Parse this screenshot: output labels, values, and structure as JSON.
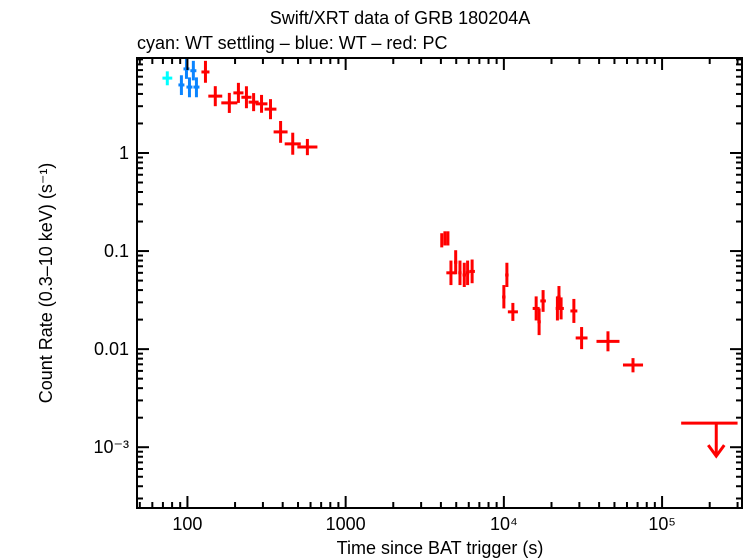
{
  "chart_data": {
    "type": "scatter",
    "title": "Swift/XRT data of GRB 180204A",
    "subtitle": "cyan: WT settling – blue: WT – red: PC",
    "xlabel": "Time since BAT trigger (s)",
    "ylabel": "Count Rate (0.3–10 keV) (s⁻¹)",
    "xscale": "log",
    "yscale": "log",
    "xlim": [
      48,
      320000
    ],
    "ylim": [
      0.00024,
      9.3
    ],
    "x_ticks": [
      {
        "v": 100,
        "label": "100"
      },
      {
        "v": 1000,
        "label": "1000"
      },
      {
        "v": 10000,
        "label": "10⁴"
      },
      {
        "v": 100000,
        "label": "10⁵"
      }
    ],
    "y_ticks": [
      {
        "v": 1,
        "label": "1"
      },
      {
        "v": 0.1,
        "label": "0.1"
      },
      {
        "v": 0.01,
        "label": "0.01"
      },
      {
        "v": 0.001,
        "label": "10⁻³"
      }
    ],
    "grid": false,
    "series": [
      {
        "color": "#00ffff",
        "points": [
          {
            "x": 74.6,
            "xlo": 69.5,
            "xhi": 80.2,
            "y": 5.8,
            "ylo": 4.9,
            "yhi": 6.8
          }
        ]
      },
      {
        "color": "#0a84ff",
        "points": [
          {
            "x": 91.6,
            "xlo": 87.7,
            "xhi": 95.7,
            "y": 4.94,
            "ylo": 3.9,
            "yhi": 6.2
          },
          {
            "x": 98.6,
            "xlo": 94.4,
            "xhi": 103,
            "y": 7.2,
            "ylo": 5.7,
            "yhi": 9.1
          },
          {
            "x": 103,
            "xlo": 98.6,
            "xhi": 107.6,
            "y": 4.7,
            "ylo": 3.7,
            "yhi": 5.9
          },
          {
            "x": 109,
            "xlo": 104.3,
            "xhi": 113.9,
            "y": 6.9,
            "ylo": 5.5,
            "yhi": 8.7
          },
          {
            "x": 114,
            "xlo": 109.1,
            "xhi": 119.1,
            "y": 4.7,
            "ylo": 3.7,
            "yhi": 5.9
          }
        ]
      },
      {
        "color": "#ff0000",
        "points": [
          {
            "x": 130,
            "xlo": 122.6,
            "xhi": 137.8,
            "y": 6.7,
            "ylo": 5.2,
            "yhi": 8.7
          },
          {
            "x": 150,
            "xlo": 135.5,
            "xhi": 166,
            "y": 3.8,
            "ylo": 3.0,
            "yhi": 4.8
          },
          {
            "x": 184,
            "xlo": 163.7,
            "xhi": 206.8,
            "y": 3.24,
            "ylo": 2.56,
            "yhi": 4.1
          },
          {
            "x": 210,
            "xlo": 195.2,
            "xhi": 226,
            "y": 4.1,
            "ylo": 3.24,
            "yhi": 5.19
          },
          {
            "x": 236,
            "xlo": 219.3,
            "xhi": 254,
            "y": 3.7,
            "ylo": 2.86,
            "yhi": 4.79
          },
          {
            "x": 262,
            "xlo": 243.5,
            "xhi": 281.9,
            "y": 3.3,
            "ylo": 2.67,
            "yhi": 4.08
          },
          {
            "x": 294,
            "xlo": 269.7,
            "xhi": 320.5,
            "y": 3.17,
            "ylo": 2.57,
            "yhi": 3.91
          },
          {
            "x": 335,
            "xlo": 307.3,
            "xhi": 365.2,
            "y": 2.8,
            "ylo": 2.21,
            "yhi": 3.54
          },
          {
            "x": 388,
            "xlo": 350.5,
            "xhi": 429.5,
            "y": 1.64,
            "ylo": 1.27,
            "yhi": 2.12
          },
          {
            "x": 463,
            "xlo": 411.9,
            "xhi": 520.4,
            "y": 1.24,
            "ylo": 0.96,
            "yhi": 1.61
          },
          {
            "x": 573,
            "xlo": 495.2,
            "xhi": 663,
            "y": 1.15,
            "ylo": 0.95,
            "yhi": 1.39
          },
          {
            "x": 4050,
            "xlo": 3990,
            "xhi": 4110,
            "y": 0.129,
            "ylo": 0.109,
            "yhi": 0.152
          },
          {
            "x": 4240,
            "xlo": 4180,
            "xhi": 4300,
            "y": 0.135,
            "ylo": 0.114,
            "yhi": 0.159
          },
          {
            "x": 4430,
            "xlo": 4370,
            "xhi": 4490,
            "y": 0.135,
            "ylo": 0.114,
            "yhi": 0.159
          },
          {
            "x": 4630,
            "xlo": 4330,
            "xhi": 4960,
            "y": 0.06,
            "ylo": 0.045,
            "yhi": 0.08
          },
          {
            "x": 4960,
            "xlo": 4840,
            "xhi": 5080,
            "y": 0.077,
            "ylo": 0.058,
            "yhi": 0.102
          },
          {
            "x": 5280,
            "xlo": 5150,
            "xhi": 5410,
            "y": 0.06,
            "ylo": 0.045,
            "yhi": 0.08
          },
          {
            "x": 5620,
            "xlo": 5480,
            "xhi": 5760,
            "y": 0.057,
            "ylo": 0.043,
            "yhi": 0.076
          },
          {
            "x": 5900,
            "xlo": 5750,
            "xhi": 6050,
            "y": 0.06,
            "ylo": 0.045,
            "yhi": 0.08
          },
          {
            "x": 6300,
            "xlo": 6050,
            "xhi": 6560,
            "y": 0.062,
            "ylo": 0.047,
            "yhi": 0.082
          },
          {
            "x": 10000,
            "xlo": 9750,
            "xhi": 10250,
            "y": 0.034,
            "ylo": 0.026,
            "yhi": 0.045
          },
          {
            "x": 10450,
            "xlo": 10190,
            "xhi": 10720,
            "y": 0.057,
            "ylo": 0.043,
            "yhi": 0.076
          },
          {
            "x": 11400,
            "xlo": 10600,
            "xhi": 12270,
            "y": 0.024,
            "ylo": 0.0194,
            "yhi": 0.0296
          },
          {
            "x": 16000,
            "xlo": 15210,
            "xhi": 16830,
            "y": 0.026,
            "ylo": 0.0196,
            "yhi": 0.0345
          },
          {
            "x": 16700,
            "xlo": 16290,
            "xhi": 17120,
            "y": 0.019,
            "ylo": 0.0139,
            "yhi": 0.026
          },
          {
            "x": 17700,
            "xlo": 17000,
            "xhi": 18430,
            "y": 0.031,
            "ylo": 0.024,
            "yhi": 0.04
          },
          {
            "x": 21800,
            "xlo": 21260,
            "xhi": 22350,
            "y": 0.026,
            "ylo": 0.0196,
            "yhi": 0.0345
          },
          {
            "x": 22300,
            "xlo": 21750,
            "xhi": 22860,
            "y": 0.034,
            "ylo": 0.0263,
            "yhi": 0.044
          },
          {
            "x": 23000,
            "xlo": 22100,
            "xhi": 23940,
            "y": 0.026,
            "ylo": 0.0201,
            "yhi": 0.0337
          },
          {
            "x": 27700,
            "xlo": 26330,
            "xhi": 29140,
            "y": 0.0245,
            "ylo": 0.0185,
            "yhi": 0.0325
          },
          {
            "x": 31000,
            "xlo": 28440,
            "xhi": 33790,
            "y": 0.013,
            "ylo": 0.01,
            "yhi": 0.0168
          },
          {
            "x": 45500,
            "xlo": 38500,
            "xhi": 53800,
            "y": 0.012,
            "ylo": 0.0095,
            "yhi": 0.0152
          },
          {
            "x": 65500,
            "xlo": 56600,
            "xhi": 75800,
            "y": 0.0069,
            "ylo": 0.0058,
            "yhi": 0.0081
          }
        ]
      }
    ],
    "upper_limits": [
      {
        "color": "#ff0000",
        "x": 220000,
        "xlo": 132000,
        "xhi": 300000,
        "y": 0.00176
      }
    ]
  }
}
